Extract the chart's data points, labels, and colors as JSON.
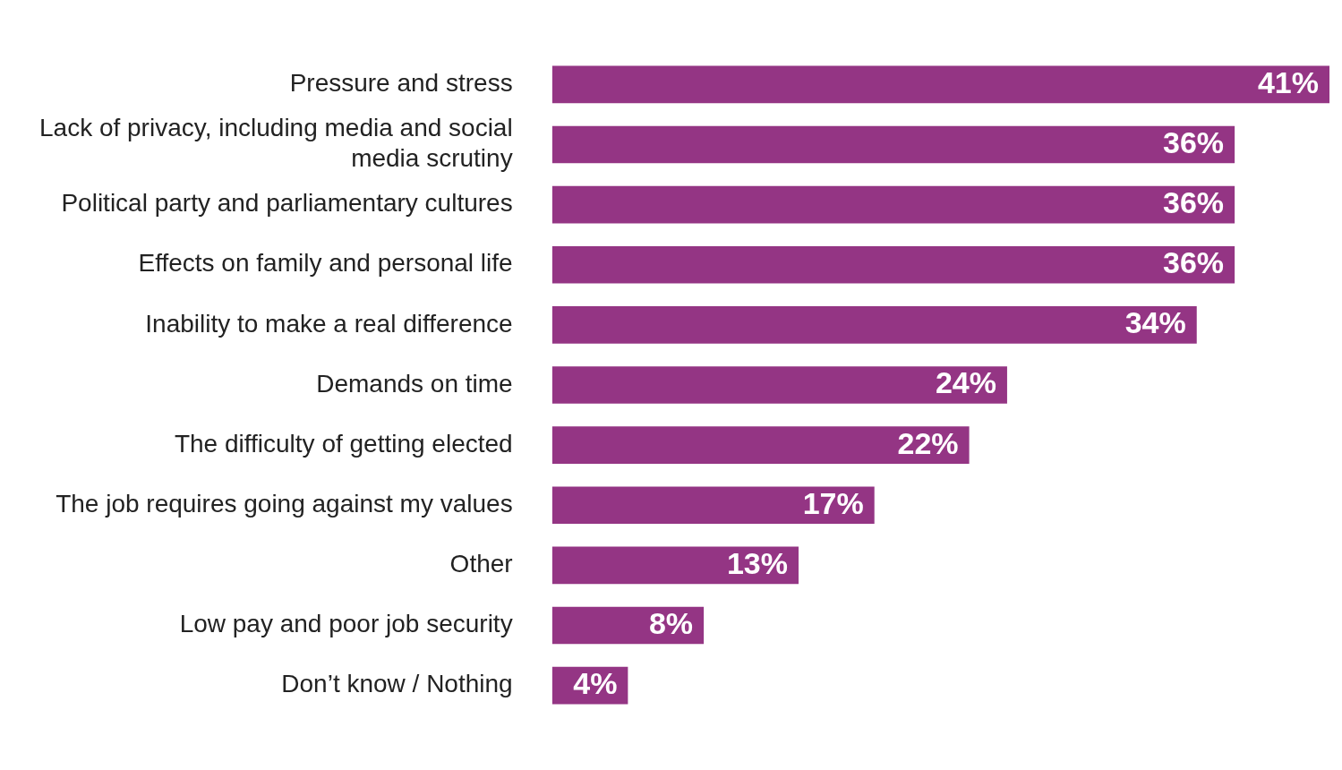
{
  "chart_data": {
    "type": "bar",
    "orientation": "horizontal",
    "categories": [
      "Pressure and stress",
      "Lack of privacy, including media and social media scrutiny",
      "Political party and parliamentary cultures",
      "Effects on family and personal life",
      "Inability to make a real difference",
      "Demands on time",
      "The difficulty of getting elected",
      "The job requires going against my values",
      "Other",
      "Low pay and poor job security",
      "Don’t know / Nothing"
    ],
    "values": [
      41,
      36,
      36,
      36,
      34,
      24,
      22,
      17,
      13,
      8,
      4
    ],
    "value_labels": [
      "41%",
      "36%",
      "36%",
      "36%",
      "34%",
      "24%",
      "22%",
      "17%",
      "13%",
      "8%",
      "4%"
    ],
    "color": "#943584",
    "legend": false
  }
}
